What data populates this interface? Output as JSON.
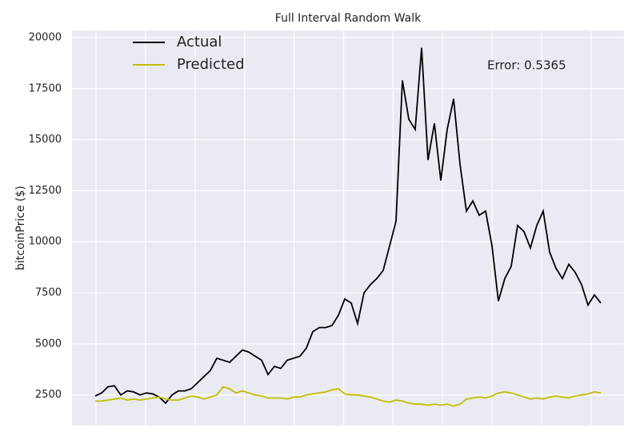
{
  "chart_data": {
    "type": "line",
    "title": "Full Interval Random Walk",
    "ylabel": "bitcoinPrice ($)",
    "annotation": "Error: 0.5365",
    "ylim": [
      1000,
      20350
    ],
    "yticks": [
      2500,
      5000,
      7500,
      10000,
      12500,
      15000,
      17500,
      20000
    ],
    "grid": true,
    "legend": "upper left",
    "series": [
      {
        "name": "Actual",
        "color": "#000000",
        "values": [
          2450,
          2600,
          2900,
          2950,
          2500,
          2700,
          2650,
          2500,
          2600,
          2550,
          2400,
          2100,
          2500,
          2700,
          2700,
          2800,
          3100,
          3400,
          3700,
          4300,
          4200,
          4100,
          4400,
          4700,
          4600,
          4400,
          4200,
          3500,
          3900,
          3800,
          4200,
          4300,
          4400,
          4800,
          5600,
          5800,
          5800,
          5900,
          6400,
          7200,
          7000,
          6000,
          7500,
          7900,
          8200,
          8600,
          9800,
          11000,
          17900,
          16000,
          15500,
          19500,
          14000,
          15800,
          13000,
          15500,
          17000,
          13800,
          11500,
          12000,
          11300,
          11500,
          9800,
          7100,
          8200,
          8800,
          10800,
          10500,
          9700,
          10800,
          11500,
          9500,
          8700,
          8200,
          8900,
          8500,
          7900,
          6900,
          7400,
          7000
        ]
      },
      {
        "name": "Predicted",
        "color": "#bfbf00",
        "values": [
          2200,
          2200,
          2250,
          2300,
          2350,
          2250,
          2300,
          2250,
          2300,
          2350,
          2400,
          2300,
          2250,
          2250,
          2350,
          2450,
          2400,
          2300,
          2400,
          2500,
          2900,
          2800,
          2600,
          2700,
          2600,
          2500,
          2450,
          2350,
          2350,
          2350,
          2300,
          2400,
          2400,
          2500,
          2550,
          2600,
          2650,
          2750,
          2800,
          2550,
          2500,
          2500,
          2450,
          2400,
          2300,
          2200,
          2150,
          2250,
          2200,
          2100,
          2050,
          2050,
          2000,
          2050,
          2000,
          2050,
          1950,
          2050,
          2300,
          2350,
          2400,
          2350,
          2450,
          2600,
          2650,
          2600,
          2500,
          2400,
          2300,
          2350,
          2300,
          2400,
          2450,
          2400,
          2350,
          2450,
          2500,
          2550,
          2650,
          2600
        ]
      }
    ]
  }
}
